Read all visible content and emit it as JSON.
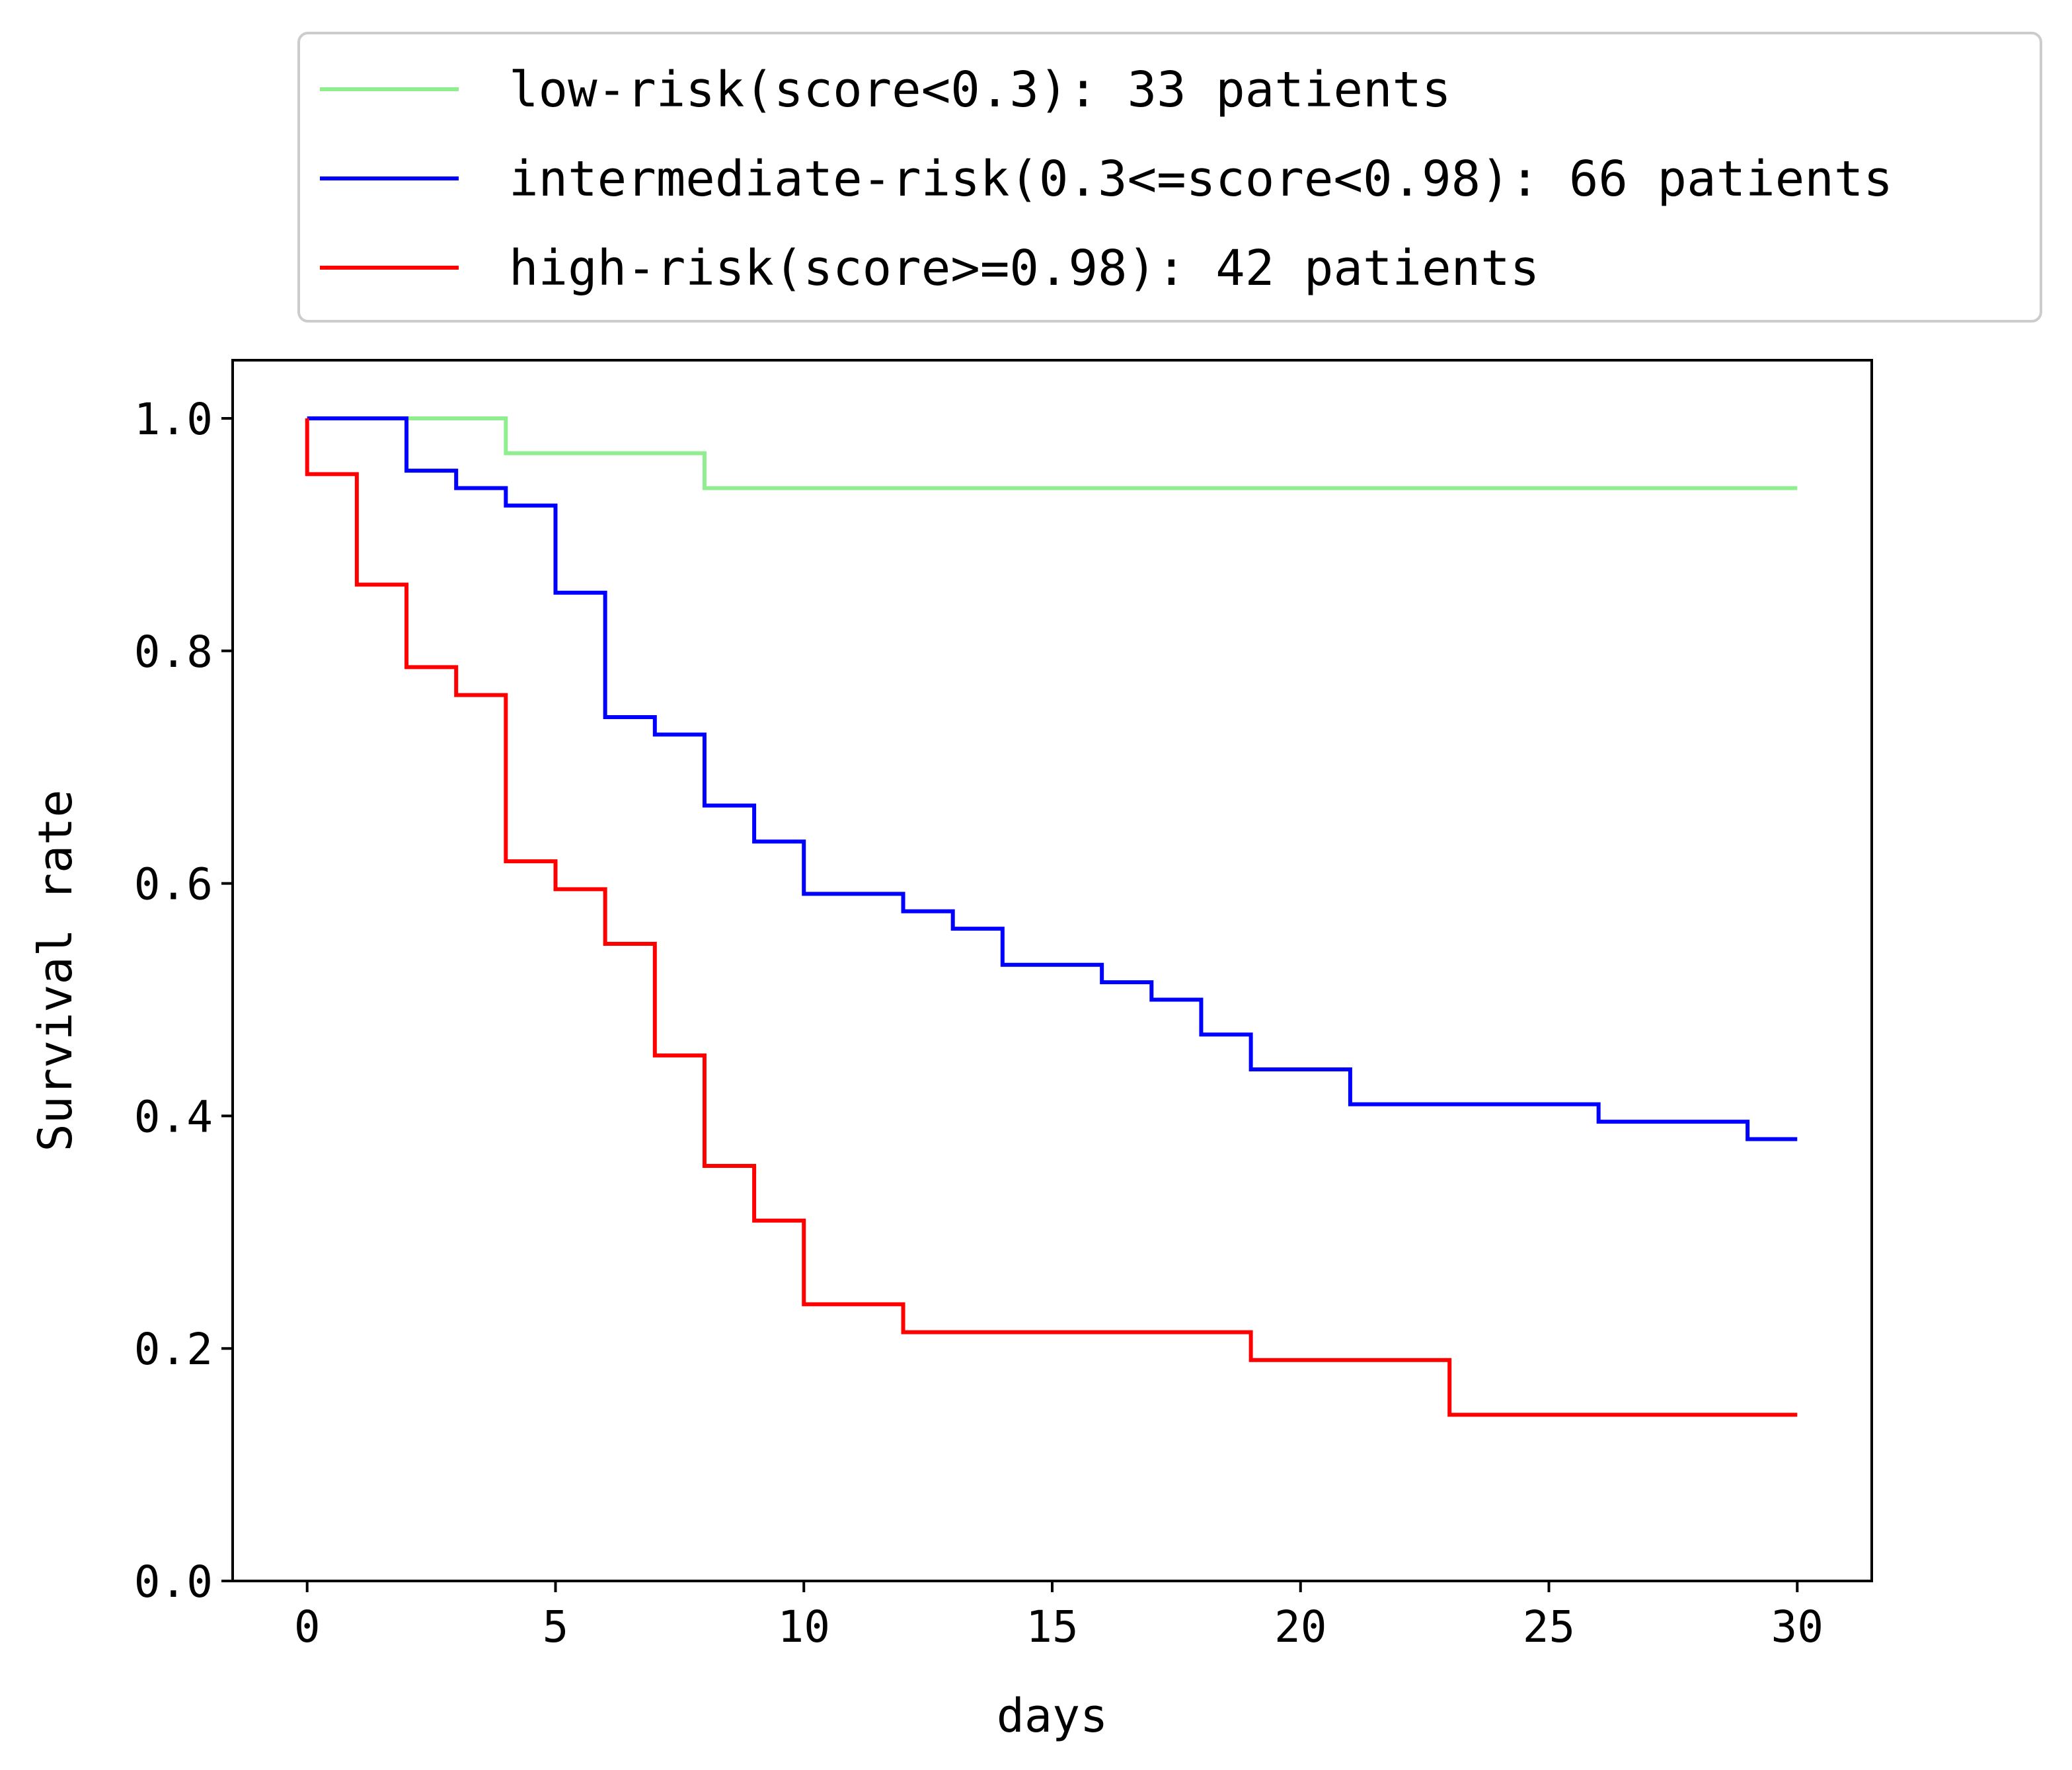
{
  "chart_data": {
    "type": "line",
    "title": "",
    "xlabel": "days",
    "ylabel": "Survival rate",
    "xlim": [
      -1.5,
      31.5
    ],
    "ylim": [
      0.0,
      1.05
    ],
    "xticks": [
      0,
      5,
      10,
      15,
      20,
      25,
      30
    ],
    "yticks": [
      0.0,
      0.2,
      0.4,
      0.6,
      0.8,
      1.0
    ],
    "xtick_labels": [
      "0",
      "5",
      "10",
      "15",
      "20",
      "25",
      "30"
    ],
    "ytick_labels": [
      "0.0",
      "0.2",
      "0.4",
      "0.6",
      "0.8",
      "1.0"
    ],
    "grid": false,
    "step": "post",
    "legend_position": "top, above plot",
    "series": [
      {
        "name": "low-risk(score<0.3): 33 patients",
        "color": "#90ee90",
        "x": [
          0,
          2,
          4,
          8,
          30
        ],
        "y": [
          1.0,
          1.0,
          0.97,
          0.94,
          0.94
        ]
      },
      {
        "name": "intermediate-risk(0.3<=score<0.98): 66 patients",
        "color": "#0000ff",
        "x": [
          0,
          2,
          3,
          4,
          5,
          6,
          7,
          8,
          9,
          10,
          12,
          13,
          14,
          16,
          17,
          18,
          19,
          21,
          26,
          29,
          30
        ],
        "y": [
          1.0,
          0.955,
          0.94,
          0.925,
          0.85,
          0.743,
          0.728,
          0.667,
          0.636,
          0.591,
          0.576,
          0.561,
          0.53,
          0.515,
          0.5,
          0.47,
          0.44,
          0.41,
          0.395,
          0.38,
          0.38
        ]
      },
      {
        "name": "high-risk(score>=0.98): 42 patients",
        "color": "#ff0000",
        "x": [
          0,
          1,
          2,
          3,
          4,
          5,
          6,
          7,
          8,
          9,
          10,
          12,
          19,
          23,
          30
        ],
        "y": [
          0.952,
          0.857,
          0.786,
          0.762,
          0.619,
          0.595,
          0.548,
          0.452,
          0.357,
          0.31,
          0.238,
          0.214,
          0.19,
          0.143,
          0.143
        ]
      }
    ]
  }
}
